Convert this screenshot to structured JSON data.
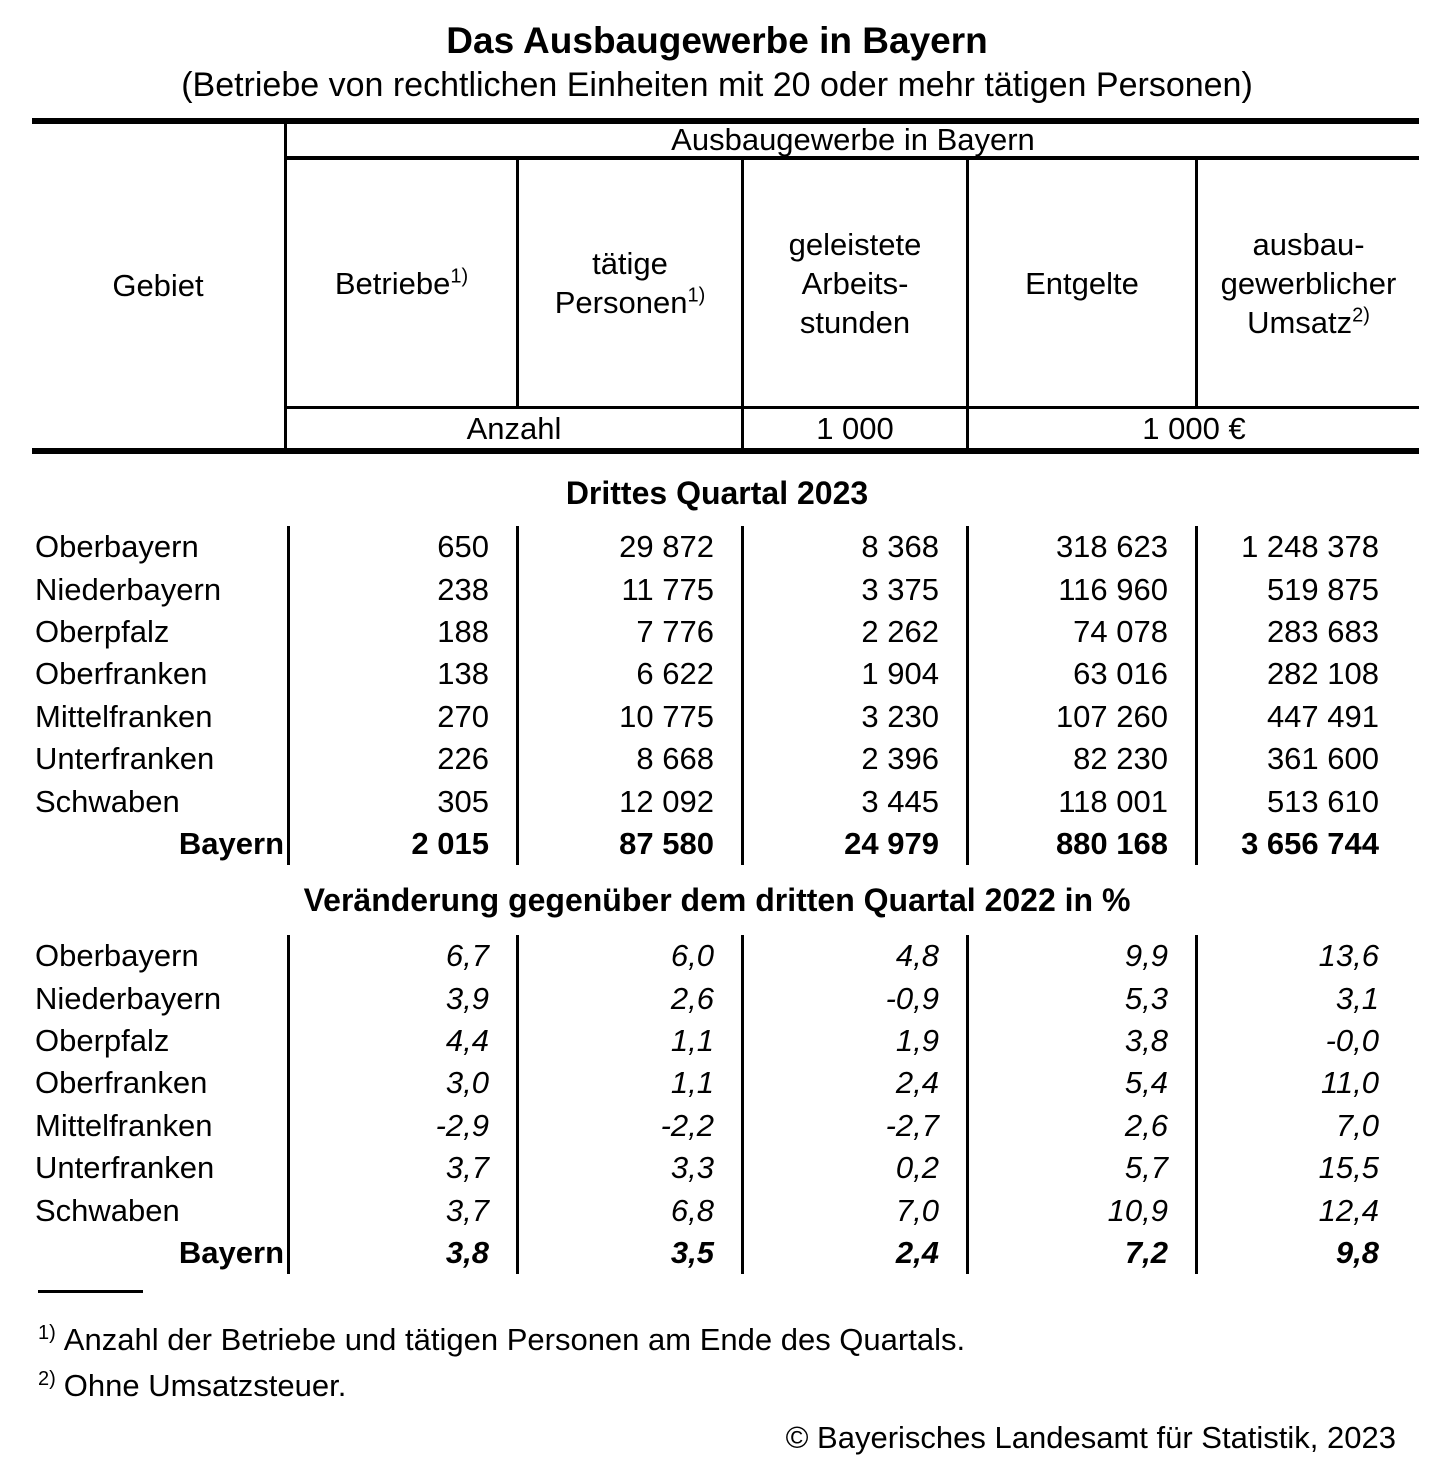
{
  "title": "Das Ausbaugewerbe in Bayern",
  "subtitle": "(Betriebe von rechtlichen Einheiten mit 20 oder mehr tätigen Personen)",
  "table": {
    "group_header": "Ausbaugewerbe in Bayern",
    "gebiet_label": "Gebiet",
    "columns": [
      {
        "lines": [
          "Betriebe"
        ],
        "sup": "1)"
      },
      {
        "lines": [
          "tätige",
          "Personen"
        ],
        "sup": "1)"
      },
      {
        "lines": [
          "geleistete",
          "Arbeits-",
          "stunden"
        ],
        "sup": ""
      },
      {
        "lines": [
          "Entgelte"
        ],
        "sup": ""
      },
      {
        "lines": [
          "ausbau-",
          "gewerblicher",
          "Umsatz"
        ],
        "sup": "2)"
      }
    ],
    "units": {
      "anzahl": "Anzahl",
      "thousand": "1 000",
      "thousand_eur": "1 000 €"
    }
  },
  "sections": [
    {
      "title": "Drittes Quartal 2023",
      "rows": [
        {
          "gebiet": "Oberbayern",
          "values": [
            "650",
            "29 872",
            "8 368",
            "318 623",
            "1 248 378"
          ]
        },
        {
          "gebiet": "Niederbayern",
          "values": [
            "238",
            "11 775",
            "3 375",
            "116 960",
            "519 875"
          ]
        },
        {
          "gebiet": "Oberpfalz",
          "values": [
            "188",
            "7 776",
            "2 262",
            "74 078",
            "283 683"
          ]
        },
        {
          "gebiet": "Oberfranken",
          "values": [
            "138",
            "6 622",
            "1 904",
            "63 016",
            "282 108"
          ]
        },
        {
          "gebiet": "Mittelfranken",
          "values": [
            "270",
            "10 775",
            "3 230",
            "107 260",
            "447 491"
          ]
        },
        {
          "gebiet": "Unterfranken",
          "values": [
            "226",
            "8 668",
            "2 396",
            "82 230",
            "361 600"
          ]
        },
        {
          "gebiet": "Schwaben",
          "values": [
            "305",
            "12 092",
            "3 445",
            "118 001",
            "513 610"
          ]
        },
        {
          "gebiet": "Bayern",
          "values": [
            "2 015",
            "87 580",
            "24 979",
            "880 168",
            "3 656 744"
          ]
        }
      ]
    },
    {
      "title": "Veränderung gegenüber dem dritten Quartal 2022 in %",
      "rows": [
        {
          "gebiet": "Oberbayern",
          "values": [
            "6,7",
            "6,0",
            "4,8",
            "9,9",
            "13,6"
          ]
        },
        {
          "gebiet": "Niederbayern",
          "values": [
            "3,9",
            "2,6",
            "-0,9",
            "5,3",
            "3,1"
          ]
        },
        {
          "gebiet": "Oberpfalz",
          "values": [
            "4,4",
            "1,1",
            "1,9",
            "3,8",
            "-0,0"
          ]
        },
        {
          "gebiet": "Oberfranken",
          "values": [
            "3,0",
            "1,1",
            "2,4",
            "5,4",
            "11,0"
          ]
        },
        {
          "gebiet": "Mittelfranken",
          "values": [
            "-2,9",
            "-2,2",
            "-2,7",
            "2,6",
            "7,0"
          ]
        },
        {
          "gebiet": "Unterfranken",
          "values": [
            "3,7",
            "3,3",
            "0,2",
            "5,7",
            "15,5"
          ]
        },
        {
          "gebiet": "Schwaben",
          "values": [
            "3,7",
            "6,8",
            "7,0",
            "10,9",
            "12,4"
          ]
        },
        {
          "gebiet": "Bayern",
          "values": [
            "3,8",
            "3,5",
            "2,4",
            "7,2",
            "9,8"
          ]
        }
      ]
    }
  ],
  "footnotes": [
    {
      "marker": "1)",
      "text": "Anzahl der Betriebe und tätigen Personen am Ende des Quartals."
    },
    {
      "marker": "2)",
      "text": "Ohne Umsatzsteuer."
    }
  ],
  "copyright": "© Bayerisches Landesamt für Statistik, 2023"
}
